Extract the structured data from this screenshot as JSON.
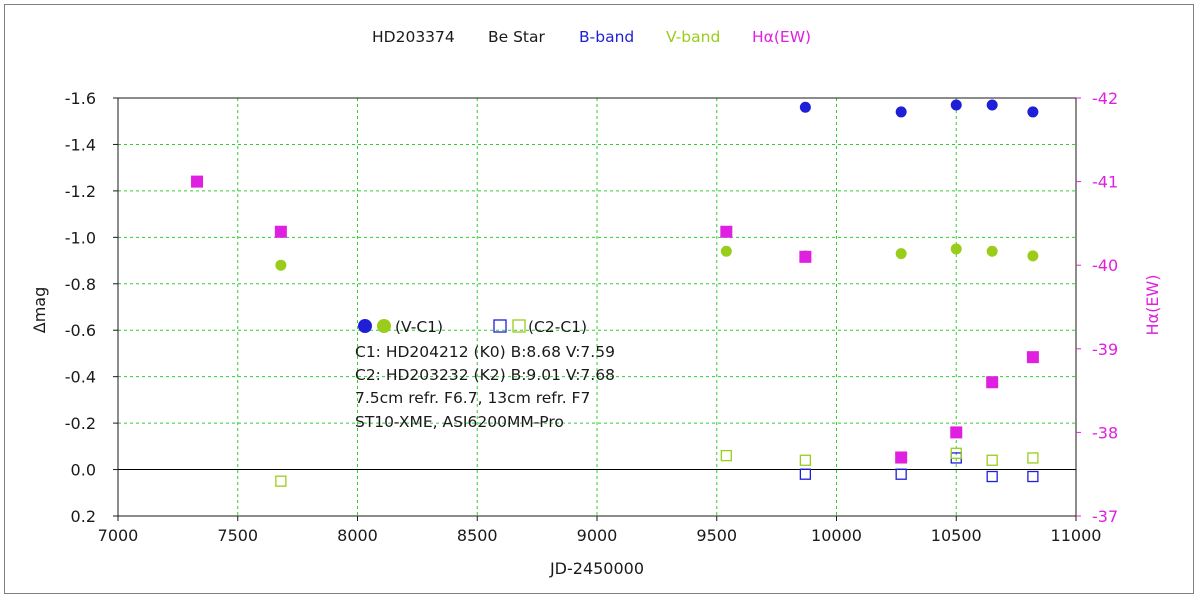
{
  "chart_data": {
    "type": "scatter",
    "title_parts": [
      {
        "text": "HD203374",
        "color": "#1a1a1a"
      },
      {
        "text": "Be Star",
        "color": "#1a1a1a"
      },
      {
        "text": "B-band",
        "color": "#1f1fd8"
      },
      {
        "text": "V-band",
        "color": "#9acd1a"
      },
      {
        "text": "Hα(EW)",
        "color": "#e020e0"
      }
    ],
    "xlabel": "JD-2450000",
    "ylabel": "Δmag",
    "y2label": "Hα(EW)",
    "xlim": [
      7000,
      11000
    ],
    "xticks": [
      7000,
      7500,
      8000,
      8500,
      9000,
      9500,
      10000,
      10500,
      11000
    ],
    "ylim": [
      0.2,
      -1.6
    ],
    "yticks": [
      0.2,
      0.0,
      -0.2,
      -0.4,
      -0.6,
      -0.8,
      -1.0,
      -1.2,
      -1.4,
      -1.6
    ],
    "ytick_labels": [
      "0.2",
      "0.0",
      "-0.2",
      "-0.4",
      "-0.6",
      "-0.8",
      "-1.0",
      "-1.2",
      "-1.4",
      "-1.6"
    ],
    "y2lim": [
      -37,
      -42
    ],
    "y2ticks": [
      -37,
      -38,
      -39,
      -40,
      -41,
      -42
    ],
    "y2tick_labels": [
      "-37",
      "-38",
      "-39",
      "-40",
      "-41",
      "-42"
    ],
    "grid": true,
    "colors": {
      "b_band": "#1f1fd8",
      "v_band": "#9acd1a",
      "halpha": "#e020e0",
      "grid": "#33cc33"
    },
    "series": [
      {
        "key": "b_vc1",
        "axis": "left",
        "marker": "filled-circle",
        "color": "#1f1fd8",
        "x": [
          9870,
          10270,
          10500,
          10650,
          10820
        ],
        "y": [
          -1.56,
          -1.54,
          -1.57,
          -1.57,
          -1.54
        ]
      },
      {
        "key": "v_vc1",
        "axis": "left",
        "marker": "filled-circle",
        "color": "#9acd1a",
        "x": [
          7680,
          9540,
          9870,
          10270,
          10500,
          10650,
          10820
        ],
        "y": [
          -0.88,
          -0.94,
          -0.92,
          -0.93,
          -0.95,
          -0.94,
          -0.92
        ]
      },
      {
        "key": "b_c2c1",
        "axis": "left",
        "marker": "open-square",
        "color": "#1f1fd8",
        "x": [
          9870,
          10270,
          10500,
          10650,
          10820
        ],
        "y": [
          0.02,
          0.02,
          -0.05,
          0.03,
          0.03
        ]
      },
      {
        "key": "v_c2c1",
        "axis": "left",
        "marker": "open-square",
        "color": "#9acd1a",
        "x": [
          7680,
          9540,
          9870,
          10270,
          10500,
          10650,
          10820
        ],
        "y": [
          0.05,
          -0.06,
          -0.04,
          -0.05,
          -0.07,
          -0.04,
          -0.05
        ]
      },
      {
        "key": "halpha",
        "axis": "right",
        "marker": "filled-square",
        "color": "#e020e0",
        "x": [
          7330,
          7680,
          9540,
          9870,
          10270,
          10500,
          10650,
          10820
        ],
        "y": [
          -41.0,
          -40.4,
          -40.4,
          -40.1,
          -37.7,
          -38.0,
          -38.6,
          -38.9
        ]
      }
    ],
    "legend": {
      "entry1": "(V-C1)",
      "entry2": "(C2-C1)",
      "notes": [
        "C1: HD204212 (K0)  B:8.68  V:7.59",
        "C2: HD203232 (K2)  B:9.01  V:7.68",
        "7.5cm refr. F6.7,  13cm refr. F7",
        "ST10-XME,  ASI6200MM-Pro"
      ]
    }
  }
}
